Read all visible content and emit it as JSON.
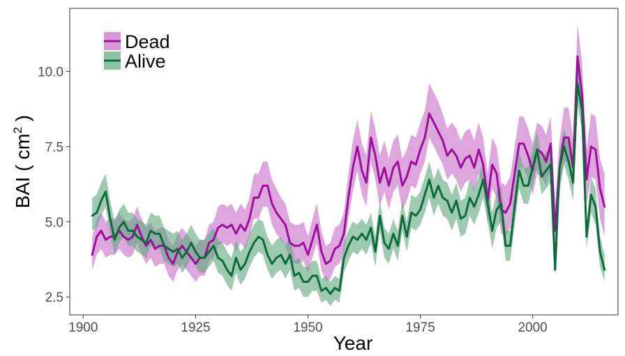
{
  "chart_data": {
    "type": "area",
    "title": "",
    "xlabel": "Year",
    "ylabel": {
      "main": "BAI ( cm",
      "sup": "2",
      "close": " )"
    },
    "xlim": [
      1897,
      2019
    ],
    "ylim": [
      1.9,
      12.1
    ],
    "xticks": [
      1900,
      1925,
      1950,
      1975,
      2000
    ],
    "yticks": [
      2.5,
      5.0,
      7.5,
      10.0
    ],
    "xtick_labels": [
      "1900",
      "1925",
      "1950",
      "1975",
      "2000"
    ],
    "ytick_labels": [
      "2.5",
      "5.0",
      "7.5",
      "10.0"
    ],
    "grid": false,
    "legend_position": "top-left",
    "series": [
      {
        "name": "Dead",
        "color": "#9b0f9b",
        "band_color": "#c66cc6",
        "x": [
          1902,
          1903,
          1904,
          1905,
          1906,
          1907,
          1908,
          1909,
          1910,
          1911,
          1912,
          1913,
          1914,
          1915,
          1916,
          1917,
          1918,
          1919,
          1920,
          1921,
          1922,
          1923,
          1924,
          1925,
          1926,
          1927,
          1928,
          1929,
          1930,
          1931,
          1932,
          1933,
          1934,
          1935,
          1936,
          1937,
          1938,
          1939,
          1940,
          1941,
          1942,
          1943,
          1944,
          1945,
          1946,
          1947,
          1948,
          1949,
          1950,
          1951,
          1952,
          1953,
          1954,
          1955,
          1956,
          1957,
          1958,
          1959,
          1960,
          1961,
          1962,
          1963,
          1964,
          1965,
          1966,
          1967,
          1968,
          1969,
          1970,
          1971,
          1972,
          1973,
          1974,
          1975,
          1976,
          1977,
          1978,
          1979,
          1980,
          1981,
          1982,
          1983,
          1984,
          1985,
          1986,
          1987,
          1988,
          1989,
          1990,
          1991,
          1992,
          1993,
          1994,
          1995,
          1996,
          1997,
          1998,
          1999,
          2000,
          2001,
          2002,
          2003,
          2004,
          2005,
          2006,
          2007,
          2008,
          2009,
          2010,
          2011,
          2012,
          2013,
          2014,
          2015,
          2016
        ],
        "values": [
          3.9,
          4.5,
          4.7,
          4.4,
          4.5,
          4.5,
          4.7,
          4.5,
          4.4,
          4.5,
          4.9,
          4.5,
          4.2,
          4.4,
          4.1,
          4.2,
          4.2,
          3.8,
          3.6,
          4.0,
          4.2,
          4.0,
          3.8,
          3.6,
          3.8,
          3.8,
          4.3,
          4.4,
          4.8,
          4.9,
          4.8,
          4.9,
          4.6,
          4.9,
          4.7,
          5.1,
          5.8,
          5.8,
          6.2,
          6.2,
          5.6,
          5.3,
          5.1,
          4.9,
          4.3,
          4.2,
          4.2,
          4.3,
          3.9,
          4.4,
          4.9,
          4.0,
          3.6,
          3.7,
          4.1,
          4.2,
          4.6,
          5.8,
          6.8,
          7.5,
          6.7,
          6.3,
          7.8,
          7.2,
          6.3,
          6.8,
          6.2,
          6.8,
          7.0,
          6.2,
          6.5,
          7.0,
          6.9,
          7.4,
          7.8,
          8.6,
          8.3,
          8.0,
          7.7,
          7.2,
          7.4,
          7.2,
          6.8,
          7.1,
          7.2,
          6.8,
          7.4,
          6.9,
          5.7,
          6.9,
          6.6,
          5.4,
          5.3,
          5.6,
          6.6,
          7.6,
          7.6,
          7.2,
          6.7,
          7.4,
          7.3,
          7.0,
          7.6,
          4.7,
          6.8,
          7.8,
          7.8,
          6.8,
          10.5,
          9.2,
          6.4,
          7.5,
          7.4,
          6.1,
          5.5
        ],
        "lower": [
          3.4,
          3.9,
          4.1,
          3.8,
          3.9,
          3.9,
          4.1,
          3.9,
          3.8,
          3.9,
          4.3,
          3.9,
          3.6,
          3.8,
          3.5,
          3.6,
          3.6,
          3.2,
          3.0,
          3.4,
          3.6,
          3.4,
          3.2,
          3.0,
          3.2,
          3.2,
          3.7,
          3.8,
          4.2,
          4.3,
          4.2,
          4.3,
          4.0,
          4.3,
          4.1,
          4.5,
          5.1,
          5.1,
          5.5,
          5.5,
          4.9,
          4.6,
          4.4,
          4.2,
          3.7,
          3.6,
          3.6,
          3.7,
          3.3,
          3.8,
          4.3,
          3.4,
          3.0,
          3.1,
          3.5,
          3.6,
          4.0,
          5.1,
          6.0,
          6.7,
          5.9,
          5.5,
          7.0,
          6.4,
          5.5,
          6.0,
          5.4,
          6.0,
          6.2,
          5.4,
          5.7,
          6.2,
          6.1,
          6.6,
          7.0,
          7.8,
          7.5,
          7.2,
          6.9,
          6.4,
          6.6,
          6.4,
          6.0,
          6.3,
          6.4,
          6.0,
          6.6,
          6.1,
          4.9,
          6.1,
          5.8,
          4.6,
          4.5,
          4.8,
          5.8,
          6.8,
          6.8,
          6.4,
          5.9,
          6.6,
          6.5,
          6.2,
          6.8,
          3.9,
          6.0,
          7.0,
          7.0,
          6.0,
          9.5,
          8.2,
          5.6,
          6.5,
          6.4,
          5.1,
          4.5
        ],
        "upper": [
          4.5,
          5.1,
          5.3,
          5.0,
          5.1,
          5.1,
          5.3,
          5.1,
          5.0,
          5.1,
          5.5,
          5.1,
          4.8,
          5.0,
          4.7,
          4.8,
          4.8,
          4.4,
          4.2,
          4.6,
          4.8,
          4.6,
          4.4,
          4.2,
          4.4,
          4.4,
          4.9,
          5.0,
          5.5,
          5.6,
          5.5,
          5.6,
          5.3,
          5.6,
          5.4,
          5.8,
          6.6,
          6.6,
          7.0,
          7.0,
          6.4,
          6.1,
          5.8,
          5.6,
          5.0,
          4.9,
          4.9,
          5.0,
          4.5,
          5.1,
          5.6,
          4.7,
          4.2,
          4.3,
          4.8,
          4.9,
          5.3,
          6.6,
          7.7,
          8.4,
          7.6,
          7.2,
          8.7,
          8.1,
          7.2,
          7.7,
          7.1,
          7.7,
          7.9,
          7.1,
          7.4,
          7.9,
          7.8,
          8.3,
          8.7,
          9.6,
          9.3,
          9.0,
          8.6,
          8.1,
          8.3,
          8.1,
          7.7,
          8.0,
          8.1,
          7.7,
          8.3,
          7.8,
          6.6,
          7.8,
          7.5,
          6.3,
          6.2,
          6.5,
          7.5,
          8.5,
          8.5,
          8.1,
          7.6,
          8.3,
          8.2,
          7.9,
          8.5,
          5.6,
          7.7,
          8.8,
          8.8,
          7.8,
          11.6,
          10.3,
          7.4,
          8.6,
          8.5,
          7.1,
          6.6
        ]
      },
      {
        "name": "Alive",
        "color": "#0d6b3a",
        "band_color": "#5fa67e",
        "x": [
          1902,
          1903,
          1904,
          1905,
          1906,
          1907,
          1908,
          1909,
          1910,
          1911,
          1912,
          1913,
          1914,
          1915,
          1916,
          1917,
          1918,
          1919,
          1920,
          1921,
          1922,
          1923,
          1924,
          1925,
          1926,
          1927,
          1928,
          1929,
          1930,
          1931,
          1932,
          1933,
          1934,
          1935,
          1936,
          1937,
          1938,
          1939,
          1940,
          1941,
          1942,
          1943,
          1944,
          1945,
          1946,
          1947,
          1948,
          1949,
          1950,
          1951,
          1952,
          1953,
          1954,
          1955,
          1956,
          1957,
          1958,
          1959,
          1960,
          1961,
          1962,
          1963,
          1964,
          1965,
          1966,
          1967,
          1968,
          1969,
          1970,
          1971,
          1972,
          1973,
          1974,
          1975,
          1976,
          1977,
          1978,
          1979,
          1980,
          1981,
          1982,
          1983,
          1984,
          1985,
          1986,
          1987,
          1988,
          1989,
          1990,
          1991,
          1992,
          1993,
          1994,
          1995,
          1996,
          1997,
          1998,
          1999,
          2000,
          2001,
          2002,
          2003,
          2004,
          2005,
          2006,
          2007,
          2008,
          2009,
          2010,
          2011,
          2012,
          2013,
          2014,
          2015,
          2016
        ],
        "values": [
          5.2,
          5.3,
          5.7,
          6.0,
          5.1,
          4.4,
          4.8,
          5.0,
          4.7,
          4.7,
          4.5,
          4.4,
          4.3,
          4.7,
          4.6,
          4.6,
          4.2,
          4.1,
          4.0,
          4.1,
          3.8,
          4.0,
          4.3,
          4.0,
          3.8,
          3.8,
          4.0,
          4.2,
          3.8,
          3.7,
          3.4,
          3.2,
          3.8,
          3.4,
          3.6,
          4.0,
          4.3,
          4.5,
          4.4,
          3.9,
          3.6,
          3.8,
          3.9,
          3.6,
          3.9,
          3.2,
          3.3,
          3.0,
          3.0,
          3.2,
          3.2,
          2.7,
          2.8,
          2.6,
          2.8,
          2.7,
          3.8,
          4.2,
          4.5,
          4.4,
          4.6,
          4.4,
          4.8,
          4.0,
          5.2,
          4.3,
          4.1,
          4.6,
          4.2,
          5.2,
          4.5,
          5.3,
          5.2,
          5.4,
          5.9,
          6.4,
          5.8,
          6.2,
          5.8,
          5.7,
          5.3,
          5.7,
          5.1,
          5.2,
          5.8,
          5.5,
          5.9,
          6.4,
          5.6,
          4.7,
          5.4,
          5.6,
          4.2,
          4.2,
          5.5,
          6.7,
          6.2,
          6.2,
          6.8,
          7.4,
          6.5,
          6.7,
          6.9,
          3.4,
          6.8,
          7.5,
          7.0,
          6.3,
          9.6,
          8.7,
          4.5,
          5.9,
          5.5,
          4.0,
          3.4
        ],
        "lower": [
          4.7,
          4.8,
          5.2,
          5.5,
          4.6,
          3.9,
          4.3,
          4.5,
          4.2,
          4.2,
          4.0,
          3.9,
          3.8,
          4.2,
          4.1,
          4.1,
          3.7,
          3.6,
          3.5,
          3.6,
          3.3,
          3.5,
          3.8,
          3.5,
          3.3,
          3.3,
          3.5,
          3.7,
          3.3,
          3.2,
          2.9,
          2.7,
          3.3,
          2.9,
          3.1,
          3.5,
          3.8,
          4.0,
          3.9,
          3.4,
          3.1,
          3.3,
          3.4,
          3.1,
          3.4,
          2.7,
          2.8,
          2.5,
          2.5,
          2.7,
          2.7,
          2.3,
          2.4,
          2.2,
          2.4,
          2.3,
          3.3,
          3.7,
          4.0,
          3.9,
          4.1,
          3.9,
          4.3,
          3.5,
          4.7,
          3.8,
          3.6,
          4.1,
          3.7,
          4.7,
          4.0,
          4.8,
          4.7,
          4.9,
          5.3,
          5.8,
          5.2,
          5.6,
          5.2,
          5.1,
          4.7,
          5.1,
          4.5,
          4.6,
          5.2,
          4.9,
          5.3,
          5.8,
          5.0,
          4.1,
          4.8,
          5.0,
          3.7,
          3.7,
          4.9,
          6.1,
          5.6,
          5.6,
          6.2,
          6.8,
          5.9,
          6.1,
          6.3,
          3.2,
          6.2,
          6.9,
          6.4,
          5.7,
          8.9,
          8.0,
          4.1,
          5.3,
          4.9,
          3.5,
          3.0
        ],
        "upper": [
          5.8,
          5.9,
          6.3,
          6.6,
          5.7,
          5.0,
          5.4,
          5.6,
          5.3,
          5.3,
          5.1,
          5.0,
          4.9,
          5.3,
          5.2,
          5.2,
          4.8,
          4.7,
          4.6,
          4.7,
          4.4,
          4.6,
          4.9,
          4.6,
          4.4,
          4.4,
          4.6,
          4.8,
          4.4,
          4.3,
          4.0,
          3.8,
          4.4,
          4.0,
          4.2,
          4.6,
          4.9,
          5.1,
          5.0,
          4.5,
          4.2,
          4.4,
          4.5,
          4.2,
          4.5,
          3.7,
          3.8,
          3.5,
          3.5,
          3.7,
          3.7,
          3.1,
          3.2,
          3.0,
          3.2,
          3.1,
          4.3,
          4.7,
          5.0,
          4.9,
          5.1,
          4.9,
          5.3,
          4.5,
          5.7,
          4.8,
          4.6,
          5.1,
          4.7,
          5.7,
          5.0,
          5.9,
          5.8,
          6.0,
          6.5,
          7.0,
          6.4,
          6.8,
          6.4,
          6.3,
          5.9,
          6.3,
          5.7,
          5.8,
          6.4,
          6.1,
          6.5,
          7.0,
          6.2,
          5.3,
          6.0,
          6.2,
          4.7,
          4.7,
          6.1,
          7.3,
          6.8,
          6.8,
          7.4,
          8.0,
          7.1,
          7.3,
          7.5,
          3.7,
          7.4,
          8.1,
          7.6,
          6.9,
          10.3,
          9.4,
          4.9,
          6.5,
          6.1,
          4.5,
          3.9
        ]
      }
    ]
  }
}
